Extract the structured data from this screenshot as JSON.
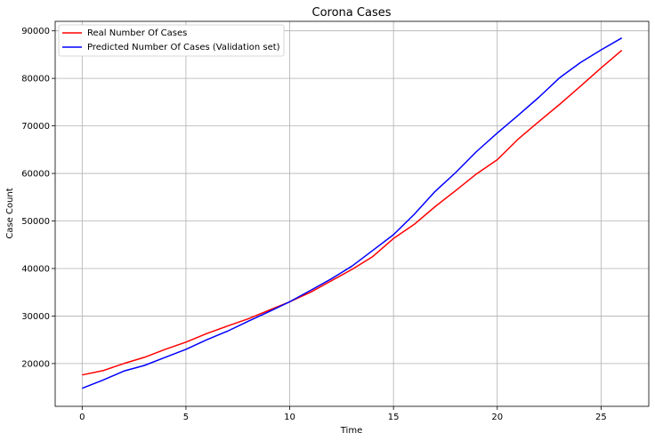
{
  "chart_data": {
    "type": "line",
    "title": "Corona Cases",
    "xlabel": "Time",
    "ylabel": "Case Count",
    "xlim": [
      -1.3,
      27.3
    ],
    "ylim": [
      11000,
      92000
    ],
    "xticks": [
      0,
      5,
      10,
      15,
      20,
      25
    ],
    "yticks": [
      20000,
      30000,
      40000,
      50000,
      60000,
      70000,
      80000,
      90000
    ],
    "grid": true,
    "legend_position": "upper-left",
    "x": [
      0,
      1,
      2,
      3,
      4,
      5,
      6,
      7,
      8,
      9,
      10,
      11,
      12,
      13,
      14,
      15,
      16,
      17,
      18,
      19,
      20,
      21,
      22,
      23,
      24,
      25,
      26
    ],
    "series": [
      {
        "name": "Real Number Of Cases",
        "color": "#ff0000",
        "values": [
          17600,
          18500,
          20000,
          21300,
          23000,
          24500,
          26300,
          27900,
          29400,
          31200,
          33000,
          35000,
          37400,
          39800,
          42500,
          46300,
          49300,
          53000,
          56400,
          59900,
          62900,
          67200,
          70900,
          74500,
          78300,
          82200,
          85900
        ]
      },
      {
        "name": "Predicted Number Of Cases (Validation set)",
        "color": "#0000ff",
        "values": [
          14800,
          16500,
          18400,
          19600,
          21300,
          23000,
          25000,
          26800,
          28900,
          30900,
          33000,
          35400,
          37800,
          40500,
          43800,
          47100,
          51400,
          56200,
          60200,
          64600,
          68500,
          72200,
          76000,
          80100,
          83300,
          86000,
          88500
        ]
      }
    ]
  }
}
